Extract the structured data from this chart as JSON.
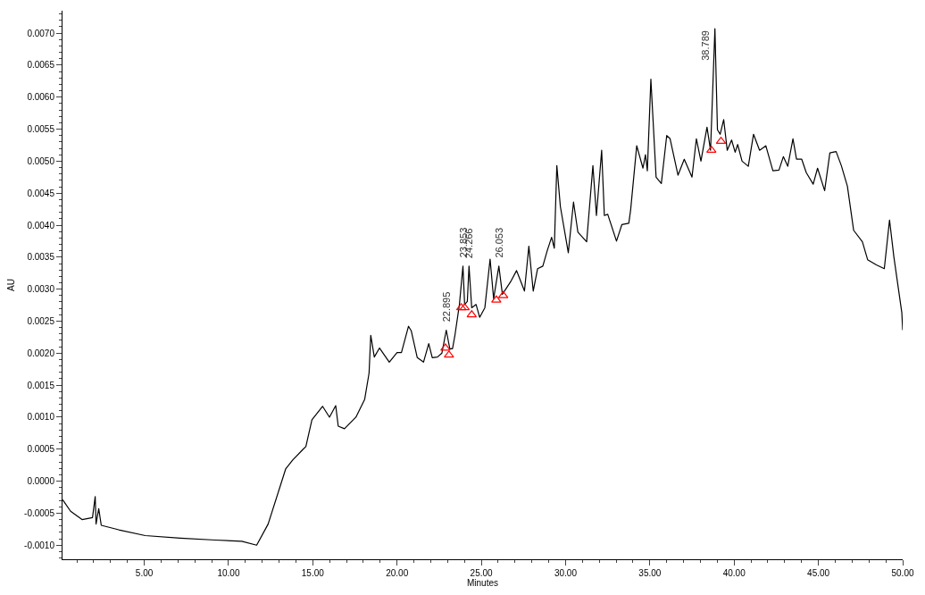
{
  "chart_data": {
    "type": "line",
    "xlabel": "Minutes",
    "ylabel": "AU",
    "xlim": [
      0.15,
      50
    ],
    "ylim": [
      -0.00122,
      0.00735
    ],
    "xticks": [
      {
        "value": 5,
        "label": "5.00"
      },
      {
        "value": 10,
        "label": "10.00"
      },
      {
        "value": 15,
        "label": "15.00"
      },
      {
        "value": 20,
        "label": "20.00"
      },
      {
        "value": 25,
        "label": "25.00"
      },
      {
        "value": 30,
        "label": "30.00"
      },
      {
        "value": 35,
        "label": "35.00"
      },
      {
        "value": 40,
        "label": "40.00"
      },
      {
        "value": 45,
        "label": "45.00"
      },
      {
        "value": 50,
        "label": "50.00"
      }
    ],
    "yticks": [
      {
        "value": -0.001,
        "label": "-0.0010"
      },
      {
        "value": -0.0005,
        "label": "-0.0005"
      },
      {
        "value": 0,
        "label": "0.0000"
      },
      {
        "value": 0.0005,
        "label": "0.0005"
      },
      {
        "value": 0.001,
        "label": "0.0010"
      },
      {
        "value": 0.0015,
        "label": "0.0015"
      },
      {
        "value": 0.002,
        "label": "0.0020"
      },
      {
        "value": 0.0025,
        "label": "0.0025"
      },
      {
        "value": 0.003,
        "label": "0.0030"
      },
      {
        "value": 0.0035,
        "label": "0.0035"
      },
      {
        "value": 0.004,
        "label": "0.0040"
      },
      {
        "value": 0.0045,
        "label": "0.0045"
      },
      {
        "value": 0.005,
        "label": "0.0050"
      },
      {
        "value": 0.0055,
        "label": "0.0055"
      },
      {
        "value": 0.006,
        "label": "0.0060"
      },
      {
        "value": 0.0065,
        "label": "0.0065"
      },
      {
        "value": 0.007,
        "label": "0.0070"
      }
    ],
    "series": [
      {
        "color": "#000000",
        "marker": "none",
        "line_style": "solid",
        "x": [
          0.16,
          0.63,
          1.31,
          1.93,
          2.09,
          2.14,
          2.3,
          2.45,
          3.49,
          5.06,
          7.14,
          9.22,
          10.79,
          11.67,
          12.35,
          13.39,
          13.81,
          14.43,
          14.59,
          14.95,
          15.58,
          15.99,
          16.36,
          16.51,
          16.88,
          17.56,
          18.08,
          18.34,
          18.44,
          18.65,
          18.96,
          19.54,
          20.0,
          20.26,
          20.68,
          20.84,
          21.2,
          21.57,
          21.88,
          22.09,
          22.4,
          22.66,
          22.92,
          23.13,
          23.29,
          23.44,
          23.7,
          23.91,
          24.01,
          24.17,
          24.27,
          24.43,
          24.69,
          24.9,
          25.21,
          25.52,
          25.73,
          26.04,
          26.25,
          26.77,
          27.09,
          27.3,
          27.56,
          27.82,
          28.08,
          28.34,
          28.65,
          28.91,
          29.17,
          29.33,
          29.48,
          29.69,
          30.16,
          30.47,
          30.73,
          31.25,
          31.62,
          31.83,
          32.14,
          32.3,
          32.5,
          33.02,
          33.34,
          33.75,
          33.86,
          34.22,
          34.59,
          34.74,
          34.85,
          35.06,
          35.37,
          35.68,
          36.0,
          36.2,
          36.67,
          37.04,
          37.5,
          37.76,
          38.03,
          38.39,
          38.6,
          38.86,
          39.01,
          39.17,
          39.38,
          39.59,
          39.85,
          40.06,
          40.21,
          40.47,
          40.84,
          41.15,
          41.51,
          41.88,
          42.3,
          42.66,
          42.92,
          43.18,
          43.49,
          43.7,
          44.01,
          44.28,
          44.69,
          44.95,
          45.37,
          45.68,
          46.05,
          46.36,
          46.72,
          47.09,
          47.61,
          47.92,
          48.44,
          48.91,
          49.22,
          49.48,
          49.95,
          50.0
        ],
        "values": [
          -0.00029,
          -0.00047,
          -0.0006,
          -0.00057,
          -0.00024,
          -0.00067,
          -0.00043,
          -0.00069,
          -0.00076,
          -0.00085,
          -0.00089,
          -0.00092,
          -0.00094,
          -0.001,
          -0.00067,
          0.00019,
          0.00033,
          0.0005,
          0.00054,
          0.00096,
          0.00117,
          0.001,
          0.00118,
          0.00086,
          0.00082,
          0.001,
          0.00128,
          0.00169,
          0.00228,
          0.00194,
          0.00208,
          0.00186,
          0.00201,
          0.00201,
          0.00242,
          0.00235,
          0.00193,
          0.00186,
          0.00215,
          0.00193,
          0.00194,
          0.002,
          0.00236,
          0.00207,
          0.00207,
          0.00229,
          0.00276,
          0.00336,
          0.00276,
          0.00281,
          0.00336,
          0.00271,
          0.00276,
          0.00256,
          0.00271,
          0.00347,
          0.00285,
          0.00336,
          0.00292,
          0.00313,
          0.00329,
          0.00315,
          0.00297,
          0.00367,
          0.00297,
          0.00332,
          0.00336,
          0.0036,
          0.00381,
          0.00364,
          0.00493,
          0.00429,
          0.00357,
          0.00436,
          0.00389,
          0.00374,
          0.00493,
          0.00415,
          0.00517,
          0.00415,
          0.00417,
          0.00375,
          0.00401,
          0.00403,
          0.00424,
          0.00524,
          0.00489,
          0.0051,
          0.00485,
          0.00628,
          0.00475,
          0.00465,
          0.0054,
          0.00535,
          0.00478,
          0.00503,
          0.00475,
          0.00535,
          0.005,
          0.00553,
          0.00517,
          0.00707,
          0.00549,
          0.00542,
          0.00565,
          0.00517,
          0.00533,
          0.00514,
          0.00526,
          0.005,
          0.00492,
          0.00542,
          0.00517,
          0.00524,
          0.00485,
          0.00486,
          0.00507,
          0.00492,
          0.00535,
          0.00503,
          0.00503,
          0.00482,
          0.00464,
          0.00489,
          0.00454,
          0.00513,
          0.00515,
          0.00493,
          0.00461,
          0.00392,
          0.00374,
          0.00346,
          0.00338,
          0.00332,
          0.00408,
          0.0035,
          0.00263,
          0.00236
        ]
      },
      {
        "type": "scatter",
        "color": "#ff0000",
        "marker": "triangle",
        "x": [
          22.87,
          23.08,
          23.81,
          24.01,
          24.43,
          25.89,
          26.3,
          38.65,
          39.22
        ],
        "values": [
          0.00208,
          0.00197,
          0.00271,
          0.00271,
          0.0026,
          0.00283,
          0.0029,
          0.00517,
          0.00531
        ]
      }
    ],
    "annotations": [
      {
        "text": "22.895",
        "x": 22.92,
        "y": 0.00236
      },
      {
        "text": "23.853",
        "x": 23.91,
        "y": 0.00336
      },
      {
        "text": "24.266",
        "x": 24.27,
        "y": 0.00336
      },
      {
        "text": "26.053",
        "x": 26.04,
        "y": 0.00336
      },
      {
        "text": "38.789",
        "x": 38.86,
        "y": 0.00707
      }
    ]
  }
}
